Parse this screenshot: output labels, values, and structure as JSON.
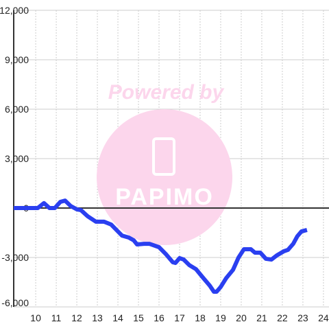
{
  "chart_data": {
    "type": "line",
    "watermark": "Powered by",
    "watermark_logo": "PAPIMO",
    "x": [
      8.93,
      10.1,
      10.4,
      10.67,
      10.93,
      11.2,
      11.43,
      11.7,
      12,
      12.2,
      12.53,
      12.93,
      13.33,
      13.67,
      13.93,
      14.2,
      14.53,
      14.77,
      14.93,
      15.27,
      15.53,
      16,
      16.33,
      16.67,
      16.8,
      17,
      17.2,
      17.47,
      17.8,
      18.13,
      18.47,
      18.67,
      18.8,
      19,
      19.27,
      19.6,
      19.87,
      20.13,
      20.47,
      20.67,
      20.93,
      21.2,
      21.47,
      21.73,
      22.07,
      22.27,
      22.53,
      22.73,
      22.93,
      23.2
    ],
    "series": [
      {
        "color": "#2a3ff0",
        "values": [
          0,
          0,
          300,
          0,
          0,
          375,
          450,
          125,
          -80,
          -125,
          -500,
          -830,
          -830,
          -1000,
          -1330,
          -1670,
          -1790,
          -1960,
          -2210,
          -2170,
          -2170,
          -2375,
          -2790,
          -3290,
          -3330,
          -3040,
          -3125,
          -3460,
          -3710,
          -4210,
          -4710,
          -5080,
          -5080,
          -4790,
          -4250,
          -3750,
          -3000,
          -2500,
          -2500,
          -2710,
          -2710,
          -3080,
          -3125,
          -2875,
          -2625,
          -2540,
          -2170,
          -1710,
          -1420,
          -1330
        ]
      }
    ],
    "xlim": [
      8.93,
      24.27
    ],
    "xticks": [
      10,
      11,
      12,
      13,
      14,
      15,
      16,
      17,
      18,
      19,
      20,
      21,
      22,
      23,
      24
    ],
    "ylim": [
      -6000,
      12000
    ],
    "yticks": [
      {
        "value": -6000,
        "label": "-6,000"
      },
      {
        "value": -3000,
        "label": "-3,000"
      },
      0,
      {
        "value": 3000,
        "label": "3,000"
      },
      {
        "value": 6000,
        "label": "6,000"
      },
      {
        "value": 9000,
        "label": "9,000"
      },
      {
        "value": 12000,
        "label": "12,000"
      }
    ],
    "grid": true
  }
}
